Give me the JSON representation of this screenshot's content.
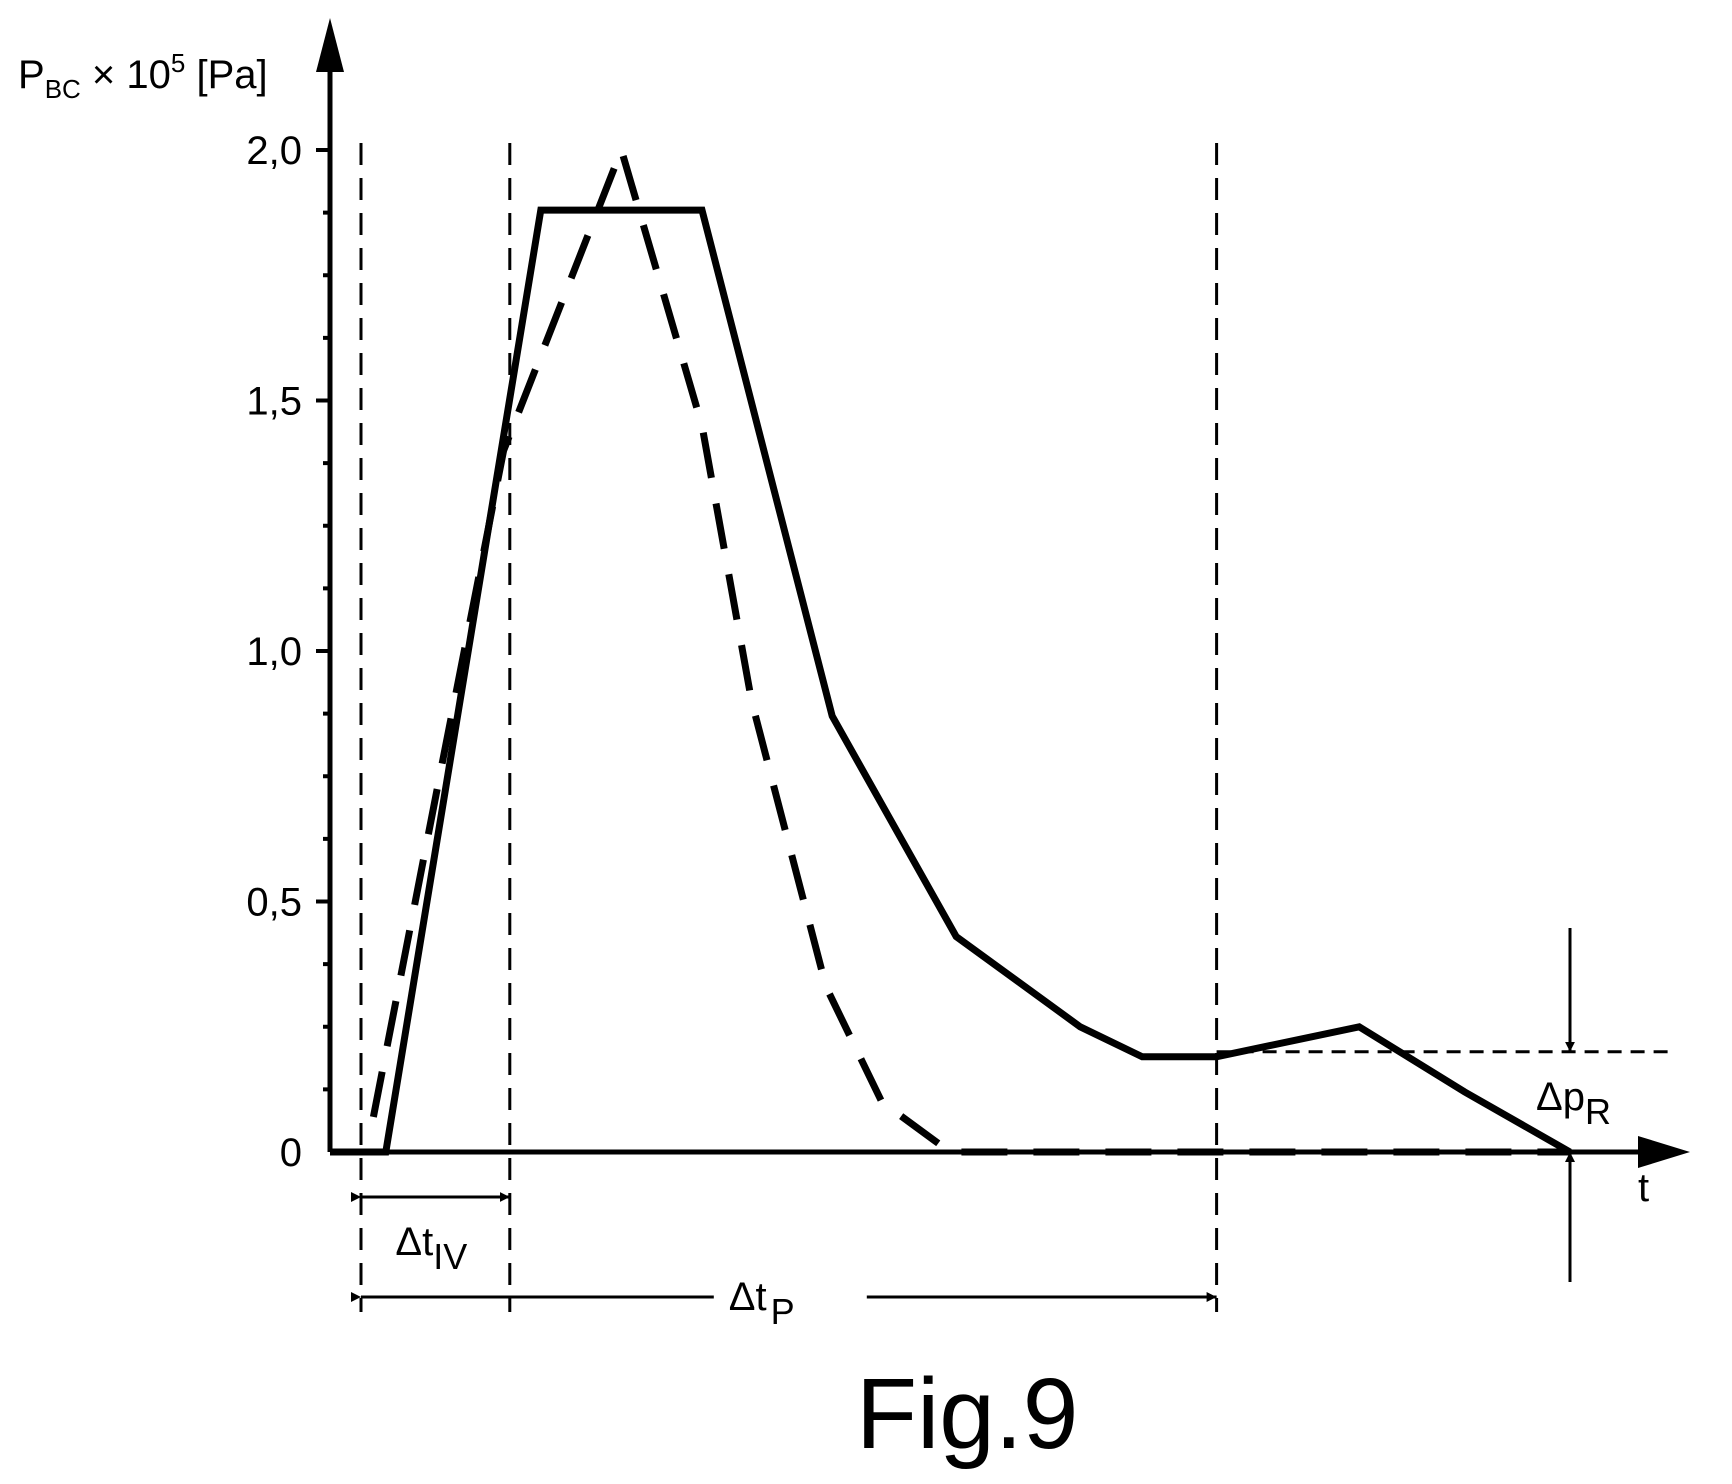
{
  "figure_label": "Fig.9",
  "chart_data": {
    "type": "line",
    "y_axis": {
      "label_main": "P",
      "label_sub": "BC",
      "label_mid": " × 10",
      "label_sup": "5",
      "label_unit": " [Pa]",
      "ticks": [
        {
          "value": 0,
          "label": "0"
        },
        {
          "value": 0.5,
          "label": "0,5"
        },
        {
          "value": 1.0,
          "label": "1,0"
        },
        {
          "value": 1.5,
          "label": "1,5"
        },
        {
          "value": 2.0,
          "label": "2,0"
        }
      ],
      "minor_step": 0.125,
      "ylim": [
        0,
        2.0
      ]
    },
    "x_axis": {
      "label": "t",
      "xlim": [
        0,
        1.0
      ]
    },
    "series": [
      {
        "style": "solid",
        "points": [
          [
            0.0,
            0
          ],
          [
            0.045,
            0
          ],
          [
            0.17,
            1.88
          ],
          [
            0.3,
            1.88
          ],
          [
            0.405,
            0.87
          ],
          [
            0.505,
            0.43
          ],
          [
            0.605,
            0.25
          ],
          [
            0.655,
            0.19
          ],
          [
            0.715,
            0.19
          ],
          [
            0.83,
            0.25
          ],
          [
            0.915,
            0.12
          ],
          [
            1.0,
            0
          ]
        ]
      },
      {
        "style": "dashed",
        "points": [
          [
            0.035,
            0.07
          ],
          [
            0.09,
            0.77
          ],
          [
            0.14,
            1.4
          ],
          [
            0.235,
            2.0
          ],
          [
            0.3,
            1.45
          ],
          [
            0.34,
            0.9
          ],
          [
            0.4,
            0.33
          ],
          [
            0.445,
            0.1
          ],
          [
            0.5,
            0
          ],
          [
            1.0,
            0
          ]
        ]
      }
    ],
    "reference_lines": {
      "vertical_x": [
        0.025,
        0.145,
        0.715
      ],
      "dp_r_level": 0.2
    },
    "annotations": {
      "dt_iv": {
        "main": "Δt",
        "sub": "IV",
        "from_x": 0.025,
        "to_x": 0.145
      },
      "dt_p": {
        "main": "Δt",
        "sub": "P",
        "from_x": 0.025,
        "to_x": 0.715
      },
      "dp_r": {
        "main": "Δp",
        "sub": "R",
        "at_x": 1.0,
        "from_y": 0,
        "to_y": 0.2
      }
    }
  }
}
